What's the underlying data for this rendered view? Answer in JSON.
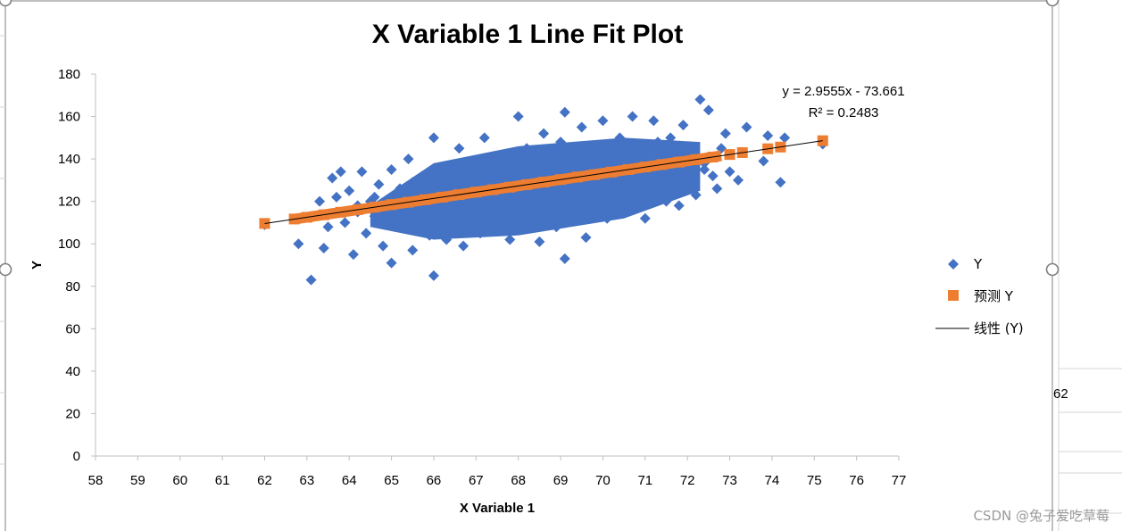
{
  "chart_data": {
    "type": "scatter",
    "title": "X Variable 1 Line Fit  Plot",
    "xlabel": "X Variable 1",
    "ylabel": "Y",
    "xlim": [
      58,
      77
    ],
    "ylim": [
      0,
      180
    ],
    "x_ticks": [
      58,
      59,
      60,
      61,
      62,
      63,
      64,
      65,
      66,
      67,
      68,
      69,
      70,
      71,
      72,
      73,
      74,
      75,
      76,
      77
    ],
    "y_ticks": [
      0,
      20,
      40,
      60,
      80,
      100,
      120,
      140,
      160,
      180
    ],
    "grid": false,
    "legend_position": "right",
    "trendline": {
      "name": "线性 (Y)",
      "slope": 2.9555,
      "intercept": -73.661,
      "x_range": [
        62.0,
        75.2
      ],
      "equation_label": "y = 2.9555x - 73.661",
      "r2_label": "R² = 0.2483",
      "color": "#000000"
    },
    "series": [
      {
        "name": "Y",
        "marker": "diamond",
        "color": "#4472C4",
        "points": [
          [
            62.0,
            109
          ],
          [
            62.8,
            100
          ],
          [
            63.1,
            83
          ],
          [
            63.3,
            120
          ],
          [
            63.4,
            98
          ],
          [
            63.5,
            108
          ],
          [
            63.6,
            131
          ],
          [
            63.7,
            122
          ],
          [
            63.8,
            134
          ],
          [
            63.9,
            110
          ],
          [
            64.0,
            125
          ],
          [
            64.1,
            95
          ],
          [
            64.2,
            115
          ],
          [
            64.3,
            134
          ],
          [
            64.4,
            105
          ],
          [
            64.5,
            120
          ],
          [
            64.6,
            113
          ],
          [
            64.7,
            128
          ],
          [
            64.8,
            99
          ],
          [
            64.9,
            118
          ],
          [
            65.0,
            91
          ],
          [
            65.0,
            135
          ],
          [
            65.1,
            108
          ],
          [
            65.2,
            126
          ],
          [
            65.3,
            115
          ],
          [
            65.4,
            140
          ],
          [
            65.5,
            97
          ],
          [
            65.6,
            121
          ],
          [
            65.7,
            110
          ],
          [
            65.8,
            132
          ],
          [
            65.9,
            104
          ],
          [
            66.0,
            85
          ],
          [
            66.0,
            150
          ],
          [
            66.1,
            118
          ],
          [
            66.2,
            125
          ],
          [
            66.3,
            102
          ],
          [
            66.4,
            136
          ],
          [
            66.5,
            112
          ],
          [
            66.6,
            145
          ],
          [
            66.7,
            99
          ],
          [
            66.8,
            128
          ],
          [
            66.9,
            116
          ],
          [
            67.0,
            138
          ],
          [
            67.1,
            105
          ],
          [
            67.2,
            150
          ],
          [
            67.3,
            122
          ],
          [
            67.4,
            110
          ],
          [
            67.5,
            133
          ],
          [
            67.6,
            141
          ],
          [
            67.7,
            118
          ],
          [
            67.8,
            102
          ],
          [
            67.9,
            128
          ],
          [
            68.0,
            160
          ],
          [
            68.1,
            112
          ],
          [
            68.2,
            145
          ],
          [
            68.3,
            122
          ],
          [
            68.4,
            135
          ],
          [
            68.5,
            101
          ],
          [
            68.6,
            152
          ],
          [
            68.7,
            118
          ],
          [
            68.8,
            130
          ],
          [
            68.9,
            108
          ],
          [
            69.0,
            148
          ],
          [
            69.1,
            93
          ],
          [
            69.1,
            162
          ],
          [
            69.2,
            125
          ],
          [
            69.3,
            138
          ],
          [
            69.4,
            115
          ],
          [
            69.5,
            155
          ],
          [
            69.6,
            103
          ],
          [
            69.7,
            132
          ],
          [
            69.8,
            120
          ],
          [
            69.9,
            145
          ],
          [
            70.0,
            158
          ],
          [
            70.1,
            112
          ],
          [
            70.2,
            136
          ],
          [
            70.3,
            125
          ],
          [
            70.4,
            150
          ],
          [
            70.5,
            118
          ],
          [
            70.6,
            142
          ],
          [
            70.7,
            160
          ],
          [
            70.8,
            122
          ],
          [
            70.9,
            132
          ],
          [
            71.0,
            112
          ],
          [
            71.1,
            146
          ],
          [
            71.2,
            158
          ],
          [
            71.3,
            128
          ],
          [
            71.4,
            140
          ],
          [
            71.5,
            120
          ],
          [
            71.6,
            150
          ],
          [
            71.7,
            135
          ],
          [
            71.8,
            118
          ],
          [
            71.9,
            156
          ],
          [
            72.0,
            130
          ],
          [
            72.1,
            145
          ],
          [
            72.2,
            123
          ],
          [
            72.3,
            168
          ],
          [
            72.4,
            138
          ],
          [
            72.5,
            163
          ],
          [
            72.6,
            132
          ],
          [
            72.7,
            126
          ],
          [
            72.8,
            145
          ],
          [
            72.9,
            152
          ],
          [
            73.0,
            134
          ],
          [
            73.2,
            130
          ],
          [
            73.4,
            155
          ],
          [
            73.8,
            139
          ],
          [
            73.9,
            151
          ],
          [
            74.2,
            129
          ],
          [
            74.3,
            150
          ],
          [
            75.2,
            147
          ],
          [
            64.2,
            118
          ],
          [
            64.6,
            122
          ],
          [
            65.3,
            125
          ],
          [
            65.6,
            117
          ],
          [
            65.9,
            121
          ],
          [
            66.2,
            130
          ],
          [
            66.5,
            120
          ],
          [
            66.8,
            124
          ],
          [
            67.1,
            127
          ],
          [
            67.3,
            131
          ],
          [
            67.6,
            120
          ],
          [
            67.9,
            135
          ],
          [
            68.2,
            129
          ],
          [
            68.4,
            126
          ],
          [
            68.7,
            133
          ],
          [
            68.9,
            122
          ],
          [
            69.2,
            131
          ],
          [
            69.4,
            128
          ],
          [
            69.7,
            138
          ],
          [
            69.9,
            126
          ],
          [
            70.2,
            130
          ],
          [
            70.4,
            135
          ],
          [
            70.7,
            128
          ],
          [
            70.9,
            140
          ],
          [
            71.2,
            136
          ],
          [
            71.4,
            131
          ],
          [
            71.7,
            142
          ],
          [
            71.9,
            137
          ],
          [
            72.2,
            140
          ],
          [
            72.4,
            135
          ],
          [
            65.1,
            112
          ],
          [
            65.5,
            129
          ],
          [
            66.0,
            110
          ],
          [
            66.3,
            114
          ],
          [
            66.7,
            132
          ],
          [
            67.0,
            115
          ],
          [
            67.4,
            138
          ],
          [
            67.7,
            112
          ],
          [
            68.0,
            140
          ],
          [
            68.3,
            116
          ],
          [
            68.6,
            139
          ],
          [
            69.0,
            117
          ],
          [
            69.3,
            142
          ],
          [
            69.6,
            121
          ],
          [
            70.0,
            144
          ],
          [
            70.3,
            119
          ],
          [
            70.6,
            147
          ],
          [
            71.0,
            124
          ],
          [
            71.3,
            148
          ],
          [
            71.6,
            127
          ]
        ]
      },
      {
        "name": "预测 Y",
        "marker": "square",
        "color": "#ED7D31",
        "points": [
          [
            62.0,
            109.6
          ],
          [
            62.7,
            111.7
          ],
          [
            63.0,
            112.5
          ],
          [
            63.4,
            113.7
          ],
          [
            63.8,
            114.9
          ],
          [
            64.2,
            116.1
          ],
          [
            64.6,
            117.3
          ],
          [
            65.0,
            118.5
          ],
          [
            65.4,
            119.6
          ],
          [
            65.8,
            120.8
          ],
          [
            66.2,
            122.0
          ],
          [
            66.6,
            123.2
          ],
          [
            67.0,
            124.4
          ],
          [
            67.4,
            125.5
          ],
          [
            67.8,
            126.7
          ],
          [
            68.2,
            127.9
          ],
          [
            68.6,
            129.1
          ],
          [
            69.0,
            130.3
          ],
          [
            69.4,
            131.5
          ],
          [
            69.8,
            132.6
          ],
          [
            70.2,
            133.8
          ],
          [
            70.6,
            135.0
          ],
          [
            71.0,
            136.2
          ],
          [
            71.4,
            137.4
          ],
          [
            71.8,
            138.5
          ],
          [
            72.2,
            139.7
          ],
          [
            72.6,
            140.9
          ],
          [
            73.0,
            142.1
          ],
          [
            73.3,
            143.0
          ],
          [
            73.9,
            144.8
          ],
          [
            74.2,
            145.6
          ],
          [
            75.2,
            148.6
          ]
        ]
      }
    ]
  },
  "side_cells": {
    "visible_value": "62"
  },
  "watermark": "CSDN @兔子爱吃草莓"
}
